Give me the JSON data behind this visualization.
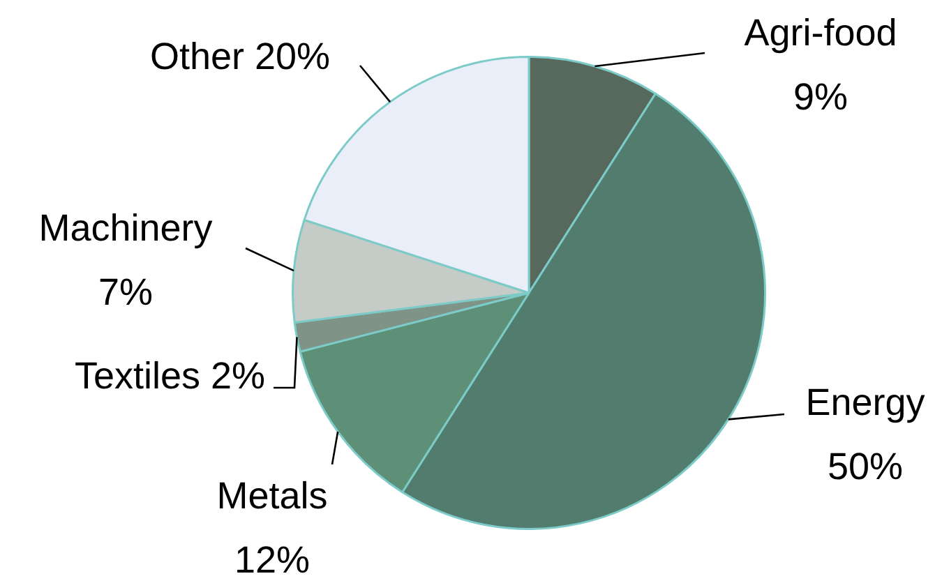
{
  "chart_data": {
    "type": "pie",
    "categories": [
      "Agri-food",
      "Energy",
      "Metals",
      "Textiles",
      "Machinery",
      "Other"
    ],
    "values": [
      9,
      50,
      12,
      2,
      7,
      20
    ],
    "value_labels": [
      "9%",
      "50%",
      "12%",
      "2%",
      "7%",
      "20%"
    ],
    "colors": [
      "#56695c",
      "#527d6e",
      "#5e9078",
      "#7f9486",
      "#c5cbc6",
      "#e9eef8"
    ],
    "legend": false
  }
}
